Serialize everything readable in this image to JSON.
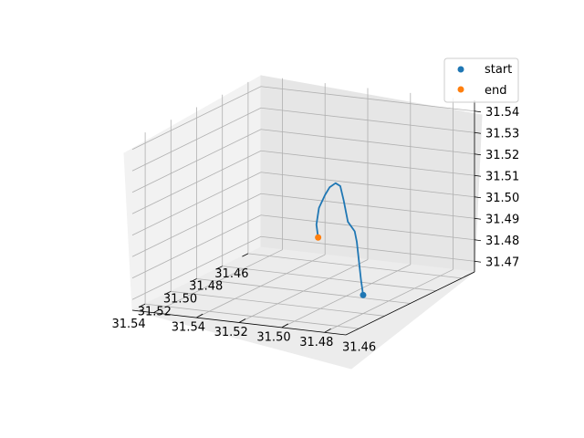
{
  "chart_data": {
    "type": "line",
    "projection": "3d",
    "title": "",
    "xlabel": "",
    "ylabel": "",
    "zlabel": "",
    "xlim": [
      31.45,
      31.55
    ],
    "ylim": [
      31.45,
      31.55
    ],
    "zlim": [
      31.465,
      31.545
    ],
    "x_ticks": [
      "31.46",
      "31.48",
      "31.50",
      "31.52",
      "31.54"
    ],
    "y_ticks": [
      "31.46",
      "31.48",
      "31.50",
      "31.52",
      "31.54"
    ],
    "z_ticks": [
      "31.47",
      "31.48",
      "31.49",
      "31.50",
      "31.51",
      "31.52",
      "31.53",
      "31.54"
    ],
    "grid": true,
    "legend_position": "upper right",
    "colors": {
      "track": "#1f77b4",
      "start": "#1f77b4",
      "end": "#ff7f0e"
    },
    "series": [
      {
        "type": "line",
        "x": [
          31.51,
          31.505,
          31.5,
          31.495,
          31.49,
          31.487,
          31.482,
          31.478,
          31.475,
          31.473,
          31.47,
          31.468,
          31.465,
          31.462
        ],
        "y": [
          31.466,
          31.47,
          31.474,
          31.478,
          31.482,
          31.487,
          31.492,
          31.496,
          31.5,
          31.504,
          31.508,
          31.512,
          31.515,
          31.516
        ],
        "z": [
          31.47,
          31.475,
          31.482,
          31.489,
          31.492,
          31.495,
          31.503,
          31.508,
          31.508,
          31.505,
          31.5,
          31.493,
          31.484,
          31.477
        ]
      },
      {
        "type": "scatter",
        "name": "start",
        "x": [
          31.51
        ],
        "y": [
          31.466
        ],
        "z": [
          31.47
        ]
      },
      {
        "type": "scatter",
        "name": "end",
        "x": [
          31.462
        ],
        "y": [
          31.516
        ],
        "z": [
          31.477
        ]
      }
    ]
  },
  "legend": {
    "items": [
      {
        "label": "start",
        "color": "#1f77b4"
      },
      {
        "label": "end",
        "color": "#ff7f0e"
      }
    ]
  }
}
